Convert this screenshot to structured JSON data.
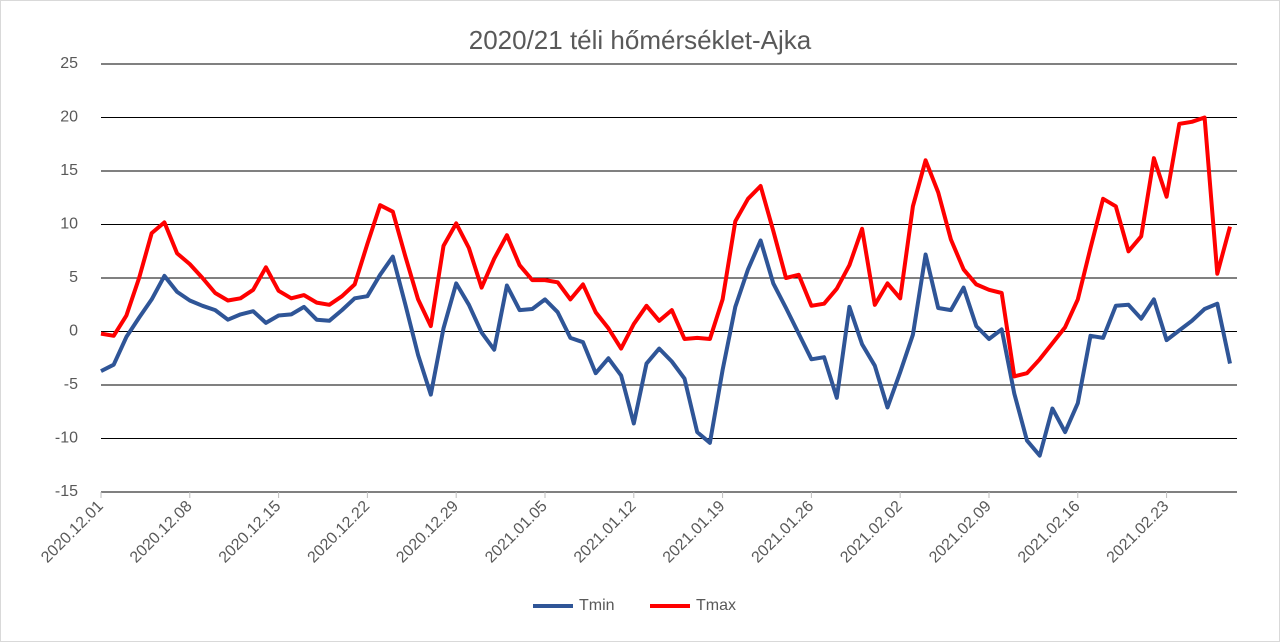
{
  "chart_data": {
    "type": "line",
    "title": "2020/21 téli hőmérséklet-Ajka",
    "categories": [
      "2020.12.01",
      null,
      null,
      null,
      null,
      null,
      null,
      "2020.12.08",
      null,
      null,
      null,
      null,
      null,
      null,
      "2020.12.15",
      null,
      null,
      null,
      null,
      null,
      null,
      "2020.12.22",
      null,
      null,
      null,
      null,
      null,
      null,
      "2020.12.29",
      null,
      null,
      null,
      null,
      null,
      null,
      "2021.01.05",
      null,
      null,
      null,
      null,
      null,
      null,
      "2021.01.12",
      null,
      null,
      null,
      null,
      null,
      null,
      "2021.01.19",
      null,
      null,
      null,
      null,
      null,
      null,
      "2021.01.26",
      null,
      null,
      null,
      null,
      null,
      null,
      "2021.02.02",
      null,
      null,
      null,
      null,
      null,
      null,
      "2021.02.09",
      null,
      null,
      null,
      null,
      null,
      null,
      "2021.02.16",
      null,
      null,
      null,
      null,
      null,
      null,
      "2021.02.23",
      null,
      null,
      null,
      null,
      null
    ],
    "series": [
      {
        "name": "Tmin",
        "color": "#2f5597",
        "values": [
          -3.7,
          -3.1,
          -0.5,
          1.3,
          3.0,
          5.2,
          3.7,
          2.9,
          2.4,
          2.0,
          1.1,
          1.6,
          1.9,
          0.8,
          1.5,
          1.6,
          2.3,
          1.1,
          1.0,
          2.0,
          3.1,
          3.3,
          5.3,
          7.0,
          2.5,
          -2.2,
          -5.9,
          0.3,
          4.5,
          2.5,
          -0.1,
          -1.7,
          4.3,
          2.0,
          2.1,
          3.0,
          1.8,
          -0.6,
          -1.0,
          -3.9,
          -2.5,
          -4.1,
          -8.6,
          -3.0,
          -1.6,
          -2.8,
          -4.4,
          -9.4,
          -10.4,
          -3.6,
          2.3,
          5.8,
          8.5,
          4.5,
          2.2,
          -0.2,
          -2.6,
          -2.4,
          -6.2,
          2.3,
          -1.2,
          -3.2,
          -7.1,
          -3.8,
          -0.3,
          7.2,
          2.2,
          2.0,
          4.1,
          0.5,
          -0.7,
          0.2,
          -5.8,
          -10.2,
          -11.6,
          -7.2,
          -9.4,
          -6.7,
          -0.4,
          -0.6,
          2.4,
          2.5,
          1.2,
          3.0,
          -0.8,
          0.1,
          1.0,
          2.1,
          2.6,
          -3.0
        ]
      },
      {
        "name": "Tmax",
        "color": "#ff0000",
        "values": [
          -0.2,
          -0.4,
          1.5,
          5.0,
          9.2,
          10.2,
          7.3,
          6.3,
          5.0,
          3.6,
          2.9,
          3.1,
          3.9,
          6.0,
          3.8,
          3.1,
          3.4,
          2.7,
          2.5,
          3.3,
          4.4,
          8.2,
          11.8,
          11.2,
          7.0,
          3.0,
          0.5,
          8.0,
          10.1,
          7.8,
          4.1,
          6.8,
          9.0,
          6.2,
          4.8,
          4.8,
          4.6,
          3.0,
          4.4,
          1.8,
          0.3,
          -1.6,
          0.7,
          2.4,
          1.0,
          2.0,
          -0.7,
          -0.6,
          -0.7,
          3.0,
          10.3,
          12.4,
          13.6,
          9.4,
          5.0,
          5.3,
          2.4,
          2.6,
          4.0,
          6.2,
          9.6,
          2.5,
          4.5,
          3.1,
          11.7,
          16.0,
          13.0,
          8.6,
          5.8,
          4.4,
          3.9,
          3.6,
          -4.2,
          -3.9,
          -2.6,
          -1.1,
          0.4,
          3.0,
          7.8,
          12.4,
          11.7,
          7.5,
          8.9,
          16.2,
          12.6,
          19.4,
          19.6,
          20.0,
          5.4,
          9.8
        ]
      }
    ],
    "ylim": [
      -15,
      25
    ],
    "yticks": [
      -15,
      -10,
      -5,
      0,
      5,
      10,
      15,
      20,
      25
    ],
    "grid": true
  }
}
